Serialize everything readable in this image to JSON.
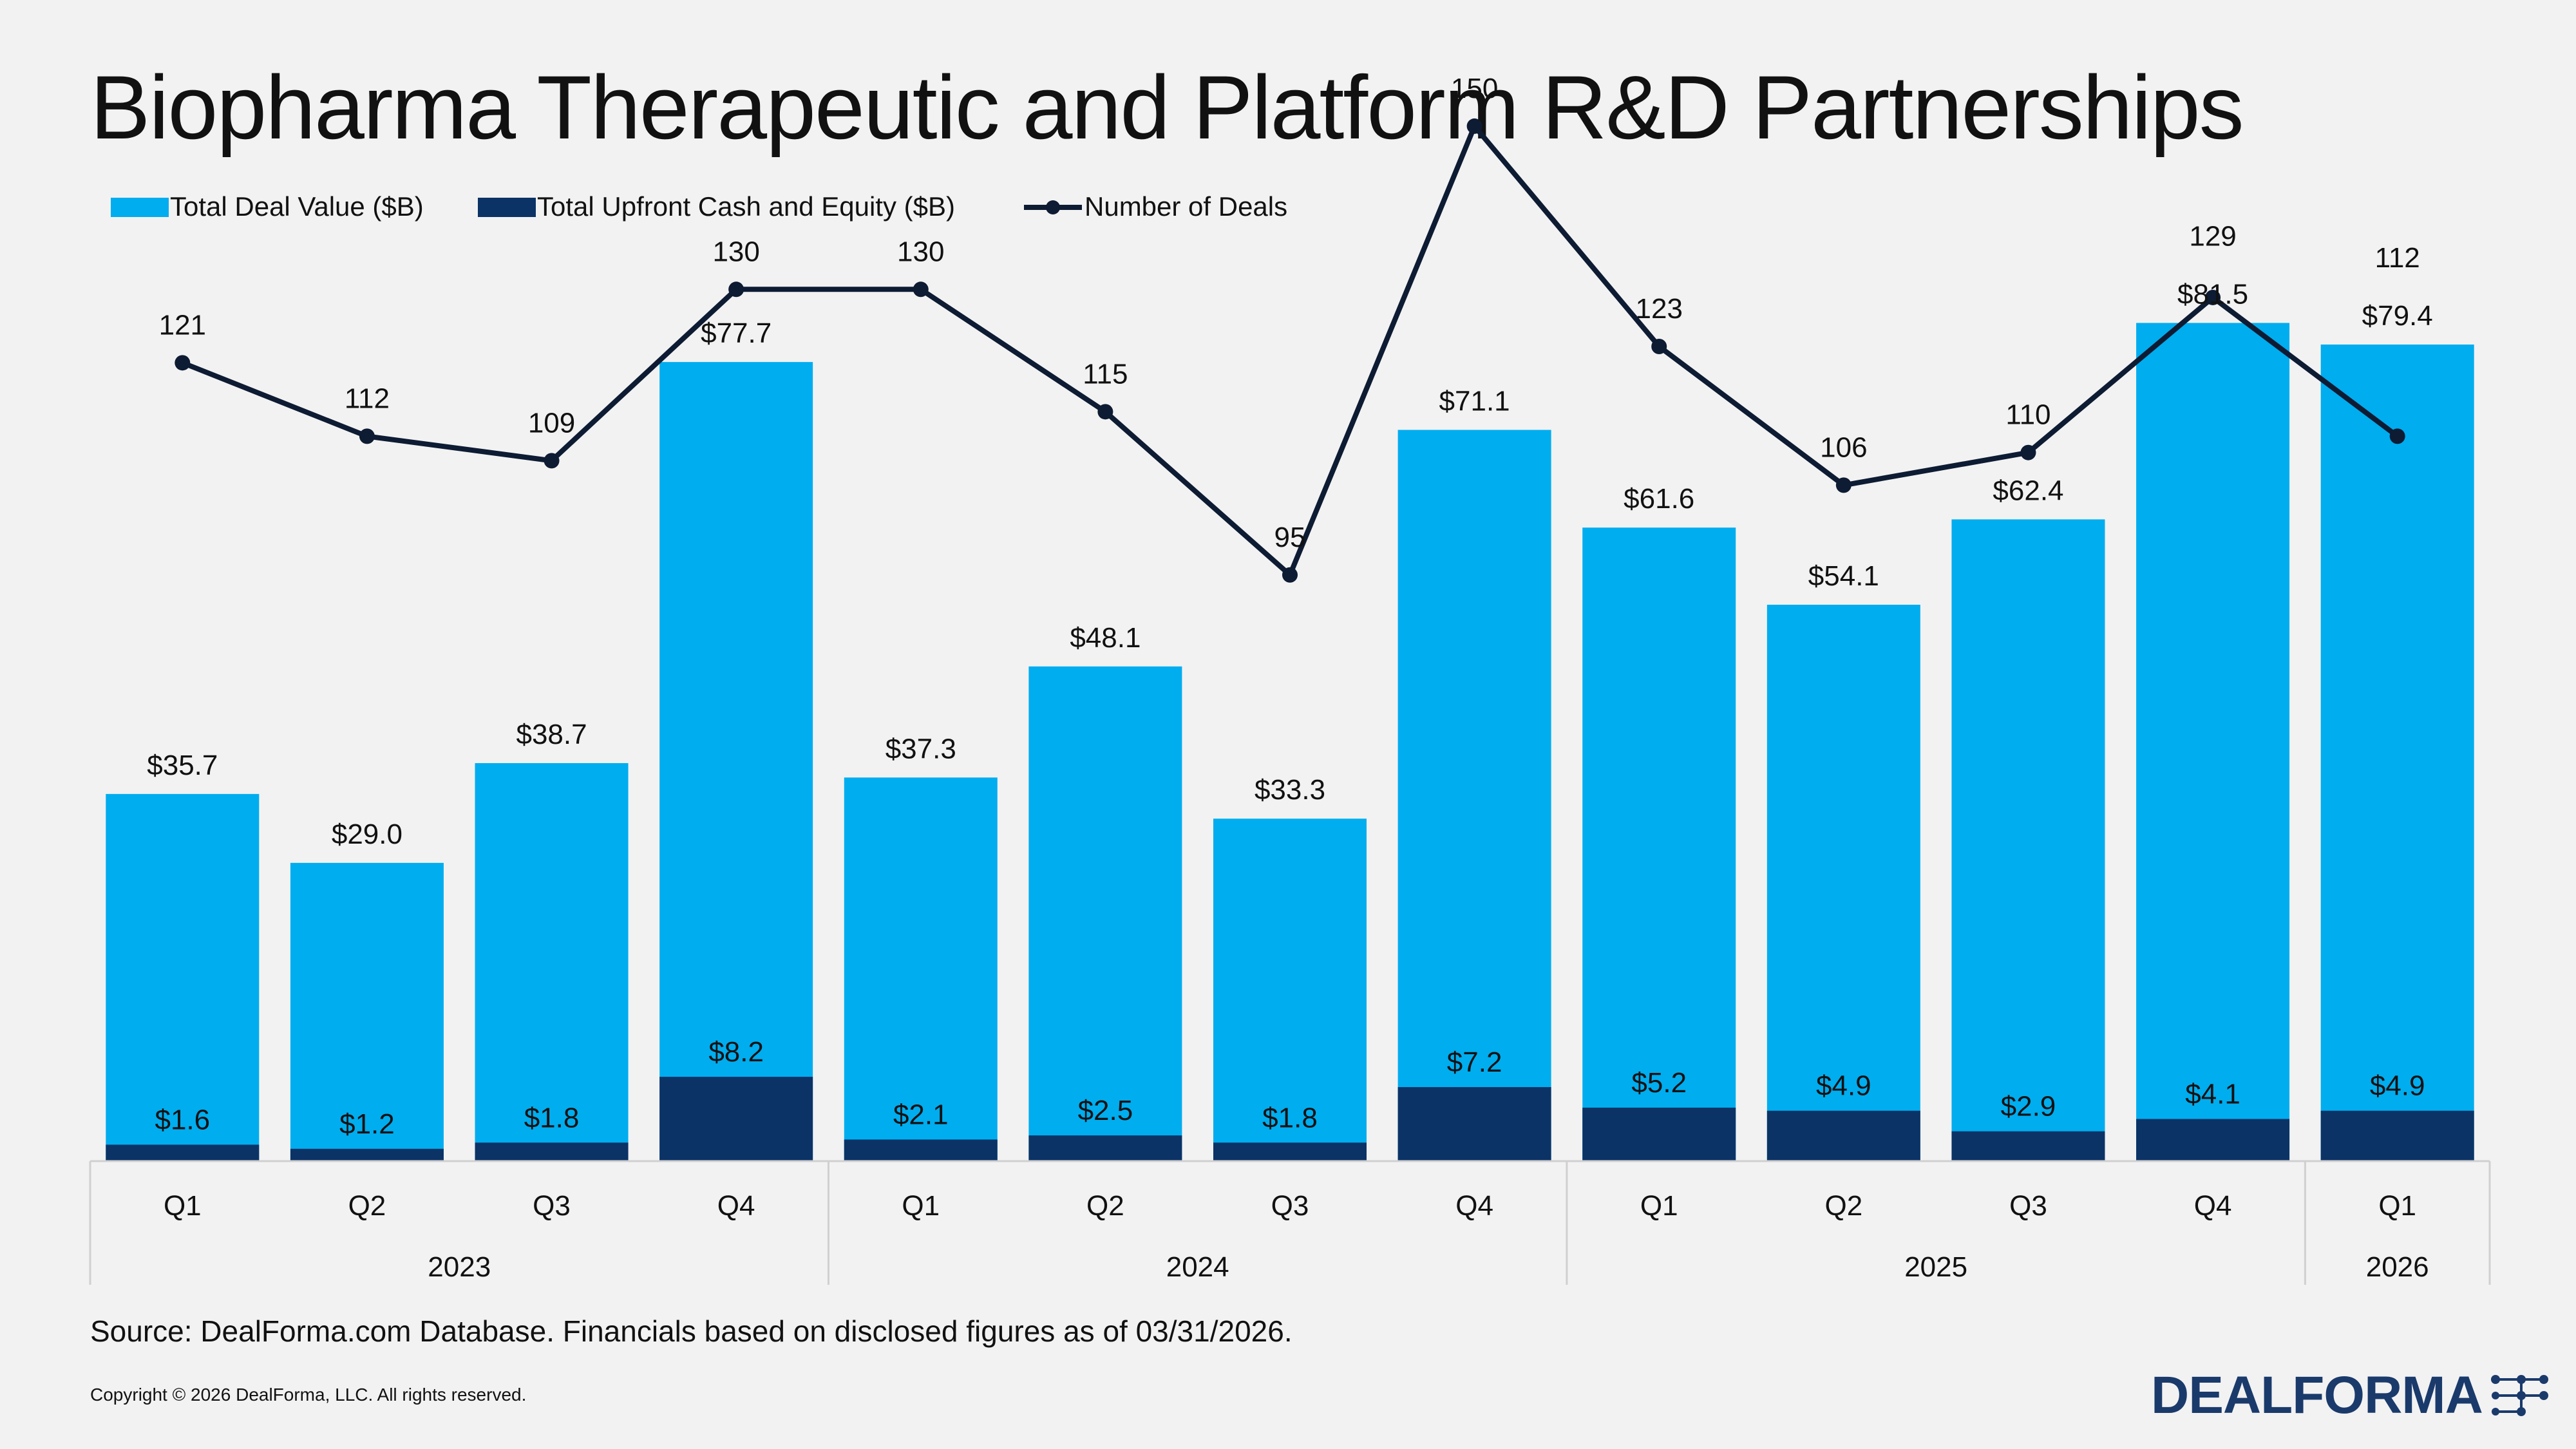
{
  "title": "Biopharma Therapeutic and Platform R&D Partnerships",
  "source": "Source: DealForma.com Database. Financials based on disclosed figures as of 03/31/2026.",
  "copyright": "Copyright © 2026 DealForma, LLC. All rights reserved.",
  "logo_text": "DEALFORMA",
  "colors": {
    "total_deal_value": "#00adef",
    "upfront": "#0b3366",
    "deals_line": "#0d1b33",
    "background": "#f2f2f2",
    "grid": "#d0d0d0"
  },
  "chart_data": {
    "type": "bar",
    "title": "Biopharma Therapeutic and Platform R&D Partnerships",
    "categories": [
      "Q1",
      "Q2",
      "Q3",
      "Q4",
      "Q1",
      "Q2",
      "Q3",
      "Q4",
      "Q1",
      "Q2",
      "Q3",
      "Q4",
      "Q1"
    ],
    "category_groups": [
      {
        "label": "2023",
        "count": 4
      },
      {
        "label": "2024",
        "count": 4
      },
      {
        "label": "2025",
        "count": 4
      },
      {
        "label": "2026",
        "count": 1
      }
    ],
    "legend_position": "top-left",
    "series": [
      {
        "name": "Total Deal Value ($B)",
        "type": "bar",
        "values": [
          35.7,
          29.0,
          38.7,
          77.7,
          37.3,
          48.1,
          33.3,
          71.1,
          61.6,
          54.1,
          62.4,
          81.5,
          79.4
        ],
        "labels": [
          "$35.7",
          "$29.0",
          "$38.7",
          "$77.7",
          "$37.3",
          "$48.1",
          "$33.3",
          "$71.1",
          "$61.6",
          "$54.1",
          "$62.4",
          "$81.5",
          "$79.4"
        ]
      },
      {
        "name": "Total Upfront Cash and Equity ($B)",
        "type": "bar",
        "values": [
          1.6,
          1.2,
          1.8,
          8.2,
          2.1,
          2.5,
          1.8,
          7.2,
          5.2,
          4.9,
          2.9,
          4.1,
          4.9
        ],
        "labels": [
          "$1.6",
          "$1.2",
          "$1.8",
          "$8.2",
          "$2.1",
          "$2.5",
          "$1.8",
          "$7.2",
          "$5.2",
          "$4.9",
          "$2.9",
          "$4.1",
          "$4.9"
        ]
      },
      {
        "name": "Number of Deals",
        "type": "line",
        "values": [
          121,
          112,
          109,
          130,
          130,
          115,
          95,
          150,
          123,
          106,
          110,
          129,
          112
        ],
        "labels": [
          "121",
          "112",
          "109",
          "130",
          "130",
          "115",
          "95",
          "150",
          "123",
          "106",
          "110",
          "129",
          "112"
        ]
      }
    ],
    "value_axis_range": [
      0,
      85
    ],
    "deals_axis_range": [
      0,
      200
    ],
    "grid": false
  }
}
